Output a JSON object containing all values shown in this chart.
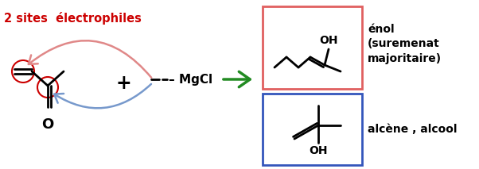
{
  "bg_color": "#ffffff",
  "red_label": "2 sites  électrophiles",
  "red_label_color": "#cc0000",
  "arrow_green_color": "#228B22",
  "enol_label": "énol\n(suremenat\nmajoritaire)",
  "alcene_label": "alcène , alcool",
  "box_enol_color": "#e06060",
  "box_alcene_color": "#3355bb",
  "curve_red_color": "#e08888",
  "curve_blue_color": "#7799cc"
}
